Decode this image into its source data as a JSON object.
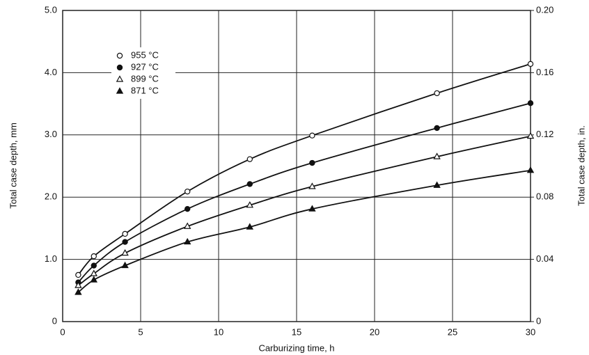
{
  "chart_data": {
    "type": "scatter",
    "x_label": "Carburizing time, h",
    "y_label": "Total case depth, mm",
    "y2_label": "Total case depth, in.",
    "x": [
      1,
      2,
      4,
      8,
      12,
      16,
      24,
      30
    ],
    "series": [
      {
        "name": "955 °C",
        "color": "#111111",
        "marker": "circle-open",
        "values": [
          0.75,
          1.05,
          1.41,
          2.09,
          2.61,
          2.99,
          3.67,
          4.14
        ]
      },
      {
        "name": "927 °C",
        "color": "#111111",
        "marker": "circle-filled",
        "values": [
          0.63,
          0.9,
          1.28,
          1.81,
          2.21,
          2.55,
          3.11,
          3.51
        ]
      },
      {
        "name": "899 °C",
        "color": "#111111",
        "marker": "triangle-open",
        "values": [
          0.58,
          0.77,
          1.1,
          1.53,
          1.87,
          2.17,
          2.65,
          2.98
        ]
      },
      {
        "name": "871 °C",
        "color": "#111111",
        "marker": "triangle-filled",
        "values": [
          0.47,
          0.67,
          0.9,
          1.28,
          1.52,
          1.81,
          2.19,
          2.43
        ]
      }
    ],
    "xlim": [
      0,
      30
    ],
    "xticks": [
      0,
      5,
      10,
      15,
      20,
      25,
      30
    ],
    "ylim": [
      0,
      5
    ],
    "yticks": [
      0,
      {
        "value": 1,
        "label": "1.0"
      },
      {
        "value": 2,
        "label": "2.0"
      },
      {
        "value": 3,
        "label": "3.0"
      },
      {
        "value": 4,
        "label": "4.0"
      },
      {
        "value": 5,
        "label": "5.0"
      }
    ],
    "y2lim": [
      0,
      0.2
    ],
    "y2ticks": [
      0,
      0.04,
      0.08,
      0.12,
      0.16,
      {
        "value": 0.2,
        "label": "0.20"
      }
    ],
    "grid": true,
    "legend": "upper-left"
  }
}
